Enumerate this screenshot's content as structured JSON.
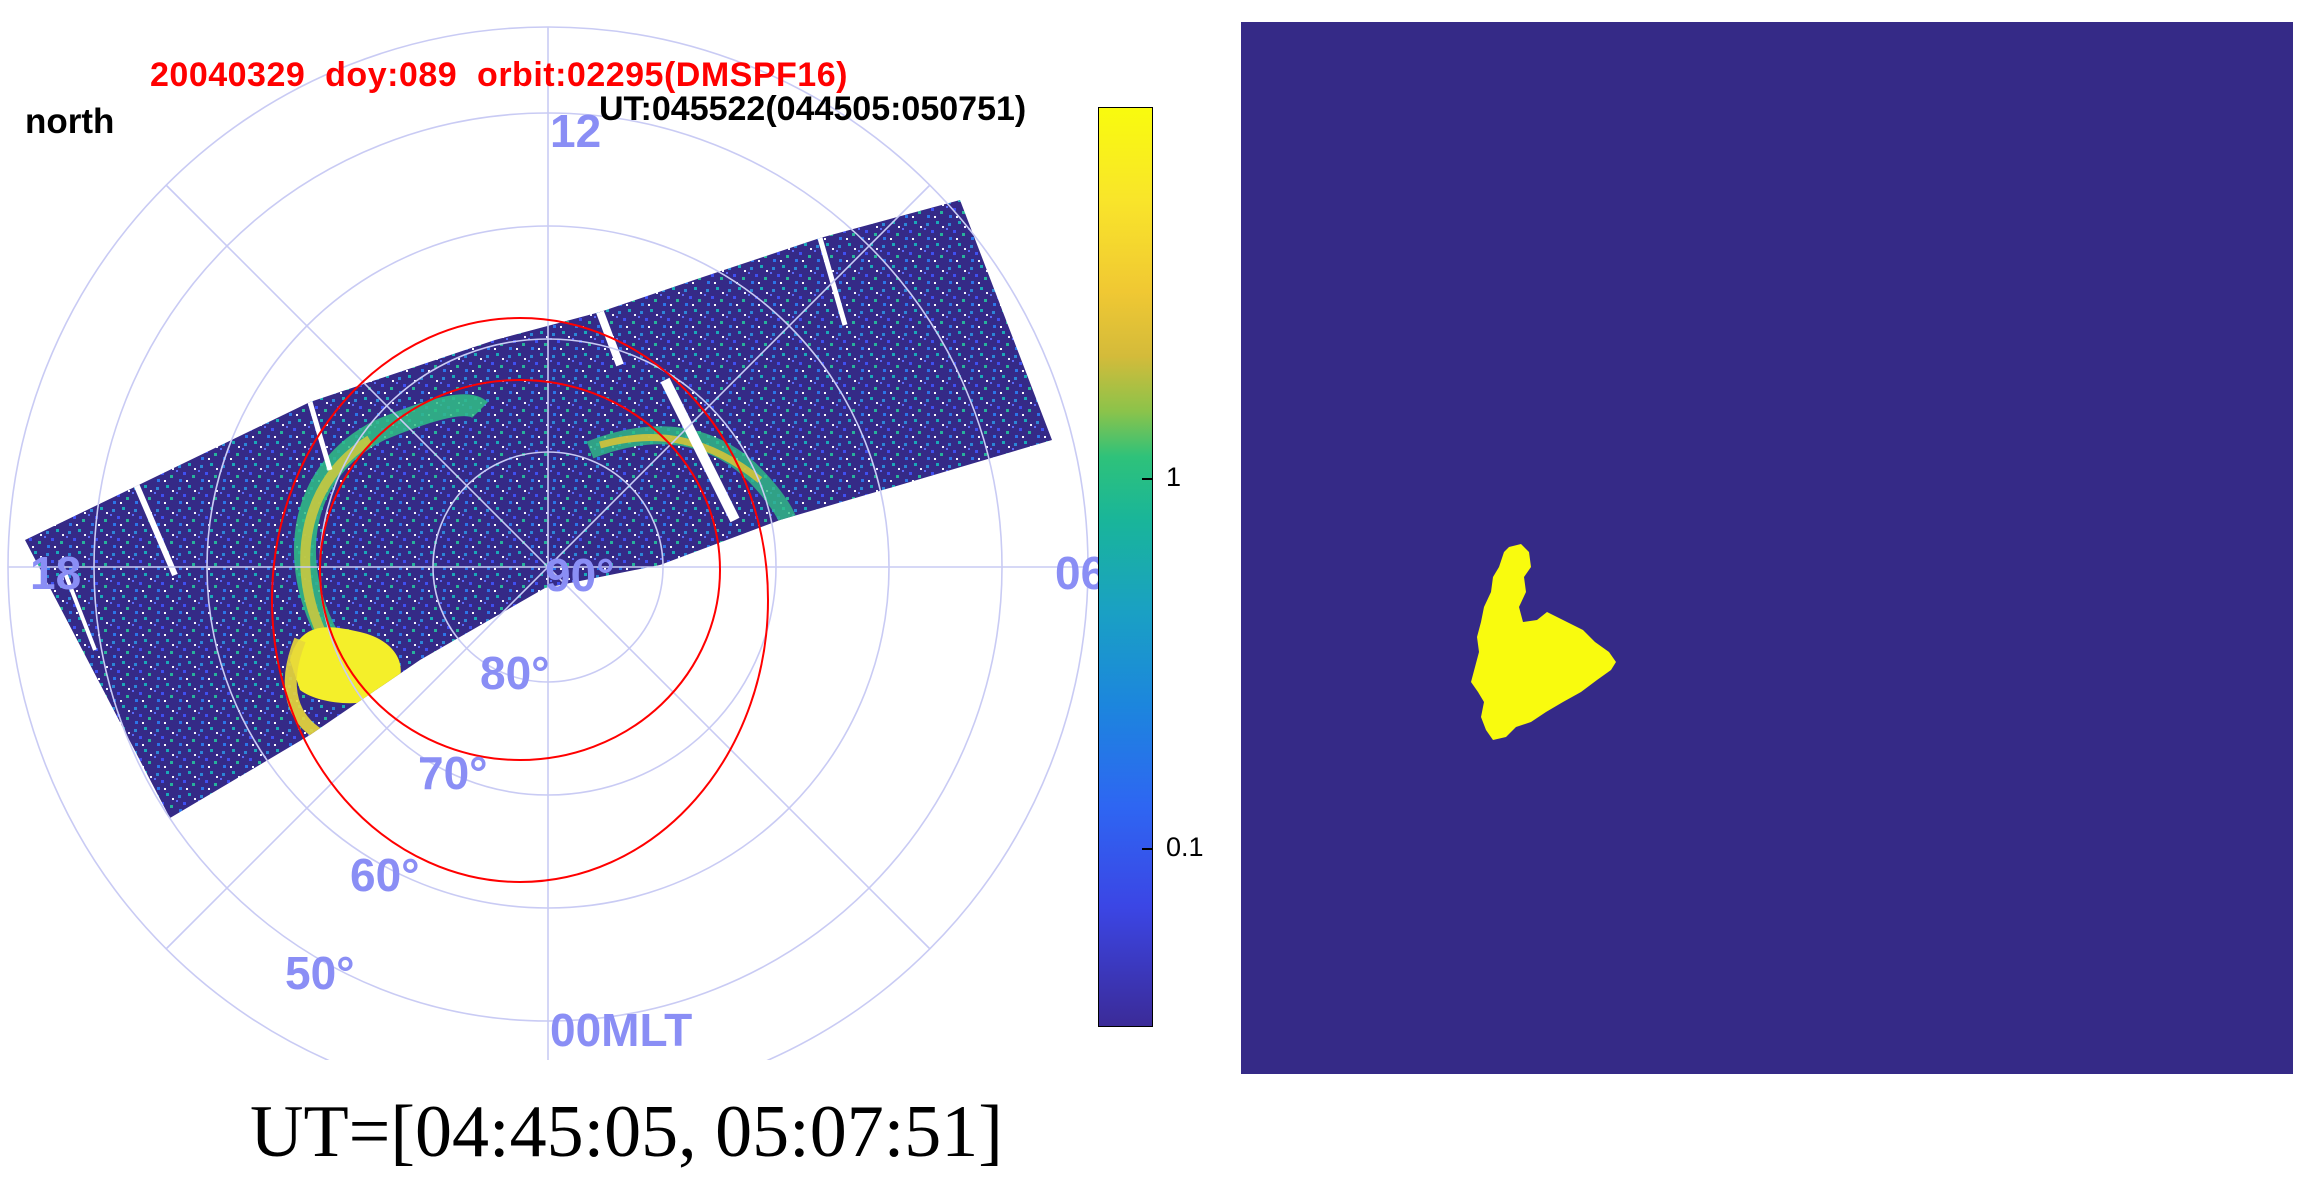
{
  "left_panel": {
    "title": "20040329  doy:089  orbit:02295(DMSPF16)",
    "hemisphere": "north",
    "ut_range": "UT:045522(044505:050751)",
    "mlt_labels": {
      "top": "12",
      "left": "18",
      "right": "06",
      "bottom": "00MLT"
    },
    "lat_labels": [
      "90°",
      "80°",
      "70°",
      "60°",
      "50°"
    ],
    "colors": {
      "grid": "#c9cbf4",
      "tick_label": "#8a8ef5",
      "oval_line": "#ff0000",
      "background_emission": "#352a87",
      "aurora_bright": "#f9fb0e"
    }
  },
  "colorbar": {
    "tick_labels": [
      "1",
      "0.1"
    ],
    "scale": "log",
    "colormap": "parula"
  },
  "caption": "UT=[04:45:05, 05:07:51]",
  "right_panel": {
    "background_color": "#352a87",
    "mask_color": "#f9fb0e"
  }
}
